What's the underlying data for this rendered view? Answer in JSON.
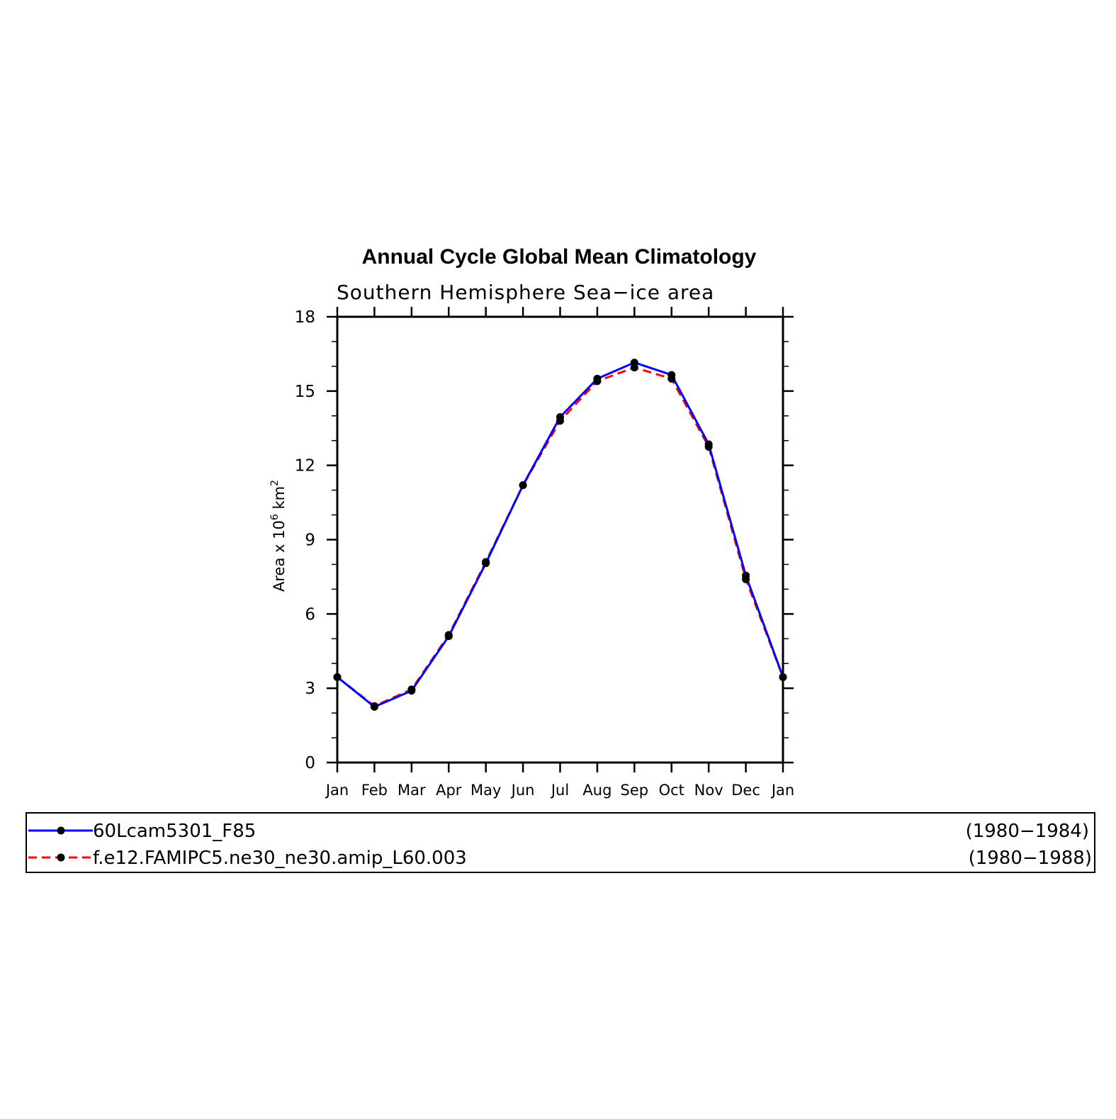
{
  "chart_data": {
    "type": "line",
    "title": "Annual Cycle Global Mean Climatology",
    "subtitle": "Southern Hemisphere Sea−ice area",
    "ylabel": {
      "prefix": "Area x 10",
      "exponent": "6",
      "unit": " km",
      "unit_exponent": "2"
    },
    "xlabel": "",
    "categories": [
      "Jan",
      "Feb",
      "Mar",
      "Apr",
      "May",
      "Jun",
      "Jul",
      "Aug",
      "Sep",
      "Oct",
      "Nov",
      "Dec",
      "Jan"
    ],
    "ylim": [
      0,
      18
    ],
    "yticks": [
      "0",
      "3",
      "6",
      "9",
      "12",
      "15",
      "18"
    ],
    "grid": false,
    "series": [
      {
        "name": "60Lcam5301_F85",
        "period": "(1980−1984)",
        "color": "#0000ff",
        "dash": "solid",
        "values": [
          3.45,
          2.25,
          2.9,
          5.1,
          8.05,
          11.2,
          13.95,
          15.5,
          16.15,
          15.65,
          12.85,
          7.55,
          3.45
        ]
      },
      {
        "name": "f.e12.FAMIPC5.ne30_ne30.amip_L60.003",
        "period": "(1980−1988)",
        "color": "#ff0000",
        "dash": "dashed",
        "values": [
          3.45,
          2.28,
          2.95,
          5.15,
          8.1,
          11.2,
          13.8,
          15.4,
          15.95,
          15.5,
          12.75,
          7.4,
          3.45
        ]
      }
    ],
    "legend_position": "bottom"
  }
}
